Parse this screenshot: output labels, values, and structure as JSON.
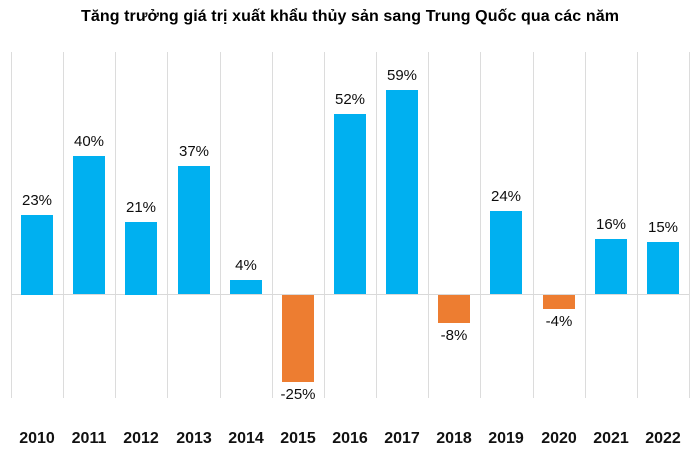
{
  "chart_data": {
    "type": "bar",
    "title": "Tăng trưởng giá trị xuất khẩu thủy sản sang Trung Quốc qua các năm",
    "categories": [
      "2010",
      "2011",
      "2012",
      "2013",
      "2014",
      "2015",
      "2016",
      "2017",
      "2018",
      "2019",
      "2020",
      "2021",
      "2022"
    ],
    "values": [
      23,
      40,
      21,
      37,
      4,
      -25,
      52,
      59,
      -8,
      24,
      -4,
      16,
      15
    ],
    "data_labels": [
      "23%",
      "40%",
      "21%",
      "37%",
      "4%",
      "-25%",
      "52%",
      "59%",
      "-8%",
      "24%",
      "-4%",
      "16%",
      "15%"
    ],
    "xlabel": "",
    "ylabel": "",
    "ylim": [
      -30,
      70
    ],
    "y_axis_visible": false,
    "grid": "vertical-only",
    "legend": "none",
    "colors": {
      "positive_bar": "#00B0F0",
      "negative_bar": "#ED7D31",
      "gridline": "#DCDCDC",
      "zero_line": "#D9D9D9",
      "label_text": "#0d0d0d",
      "axis_text": "#111111",
      "background": "#ffffff"
    }
  }
}
